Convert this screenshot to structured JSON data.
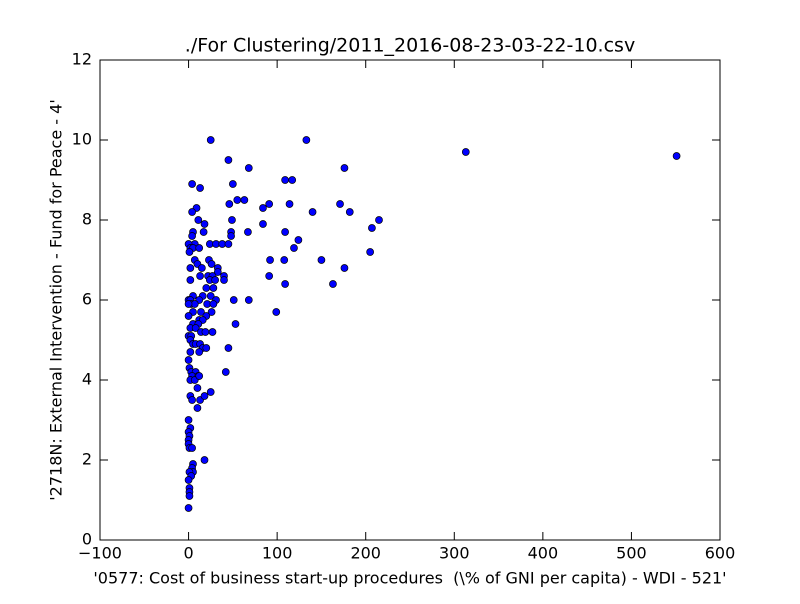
{
  "chart_data": {
    "type": "scatter",
    "title": "./For Clustering/2011_2016-08-23-03-22-10.csv",
    "x_label": "'0577: Cost of business start-up procedures  (\\% of GNI per capita) - WDI - 521'",
    "y_label": "'2718N: External Intervention - Fund for Peace - 4'",
    "color": "#0000ff",
    "xlim": [
      -100,
      600
    ],
    "xticks": [
      {
        "value": -100,
        "label": "−100"
      },
      0,
      100,
      200,
      300,
      400,
      500,
      600
    ],
    "ylim": [
      0,
      12
    ],
    "yticks": [
      0,
      2,
      4,
      6,
      8,
      10,
      12
    ],
    "x": [
      551,
      313,
      133,
      25,
      45,
      68,
      176,
      109,
      117,
      50,
      4,
      13,
      55,
      63,
      46,
      91,
      114,
      171,
      84,
      9,
      4,
      140,
      182,
      11,
      49,
      215,
      18,
      84,
      207,
      5,
      48,
      67,
      109,
      17,
      48,
      4,
      124,
      7,
      0,
      24,
      31,
      38,
      45,
      119,
      2,
      5,
      12,
      205,
      1,
      7,
      23,
      92,
      150,
      108,
      10,
      26,
      2,
      15,
      33,
      176,
      33,
      13,
      22,
      27,
      40,
      91,
      2,
      24,
      30,
      40,
      163,
      109,
      20,
      28,
      5,
      16,
      25,
      12,
      0,
      2,
      51,
      68,
      31,
      3,
      7,
      0,
      21,
      28,
      99,
      5,
      14,
      26,
      0,
      20,
      12,
      16,
      53,
      5,
      11,
      2,
      8,
      27,
      14,
      19,
      0,
      3,
      2,
      5,
      8,
      13,
      45,
      16,
      20,
      12,
      2,
      0,
      1,
      3,
      8,
      42,
      4,
      11,
      2,
      7,
      12,
      10,
      25,
      2,
      4,
      13,
      18,
      10,
      0,
      2,
      0,
      1,
      0,
      0,
      1,
      4,
      18,
      5,
      4,
      5,
      1,
      3,
      0,
      1,
      1,
      1,
      0
    ],
    "values": [
      9.6,
      9.7,
      10.0,
      10.0,
      9.5,
      9.3,
      9.3,
      9.0,
      9.0,
      8.9,
      8.9,
      8.8,
      8.5,
      8.5,
      8.4,
      8.4,
      8.4,
      8.4,
      8.3,
      8.3,
      8.2,
      8.2,
      8.2,
      8.0,
      8.0,
      8.0,
      7.9,
      7.9,
      7.8,
      7.7,
      7.7,
      7.7,
      7.7,
      7.7,
      7.6,
      7.6,
      7.5,
      7.4,
      7.4,
      7.4,
      7.4,
      7.4,
      7.4,
      7.3,
      7.3,
      7.3,
      7.3,
      7.2,
      7.2,
      7.0,
      7.0,
      7.0,
      7.0,
      7.0,
      6.9,
      6.9,
      6.8,
      6.8,
      6.8,
      6.8,
      6.7,
      6.6,
      6.6,
      6.6,
      6.6,
      6.6,
      6.5,
      6.5,
      6.5,
      6.5,
      6.4,
      6.4,
      6.3,
      6.3,
      6.1,
      6.1,
      6.1,
      6.0,
      6.0,
      6.0,
      6.0,
      6.0,
      6.0,
      5.9,
      5.9,
      5.9,
      5.9,
      5.9,
      5.7,
      5.7,
      5.7,
      5.7,
      5.6,
      5.6,
      5.5,
      5.5,
      5.4,
      5.4,
      5.4,
      5.3,
      5.3,
      5.2,
      5.2,
      5.2,
      5.1,
      5.1,
      5.0,
      4.9,
      4.9,
      4.9,
      4.8,
      4.8,
      4.8,
      4.7,
      4.7,
      4.5,
      4.3,
      4.2,
      4.2,
      4.2,
      4.1,
      4.1,
      4.0,
      4.0,
      4.1,
      3.8,
      3.7,
      3.6,
      3.5,
      3.5,
      3.6,
      3.3,
      3.0,
      2.8,
      2.7,
      2.6,
      2.5,
      2.4,
      2.3,
      2.3,
      2.0,
      1.9,
      1.8,
      1.7,
      1.7,
      1.6,
      1.5,
      1.3,
      1.2,
      1.1,
      0.8
    ]
  }
}
